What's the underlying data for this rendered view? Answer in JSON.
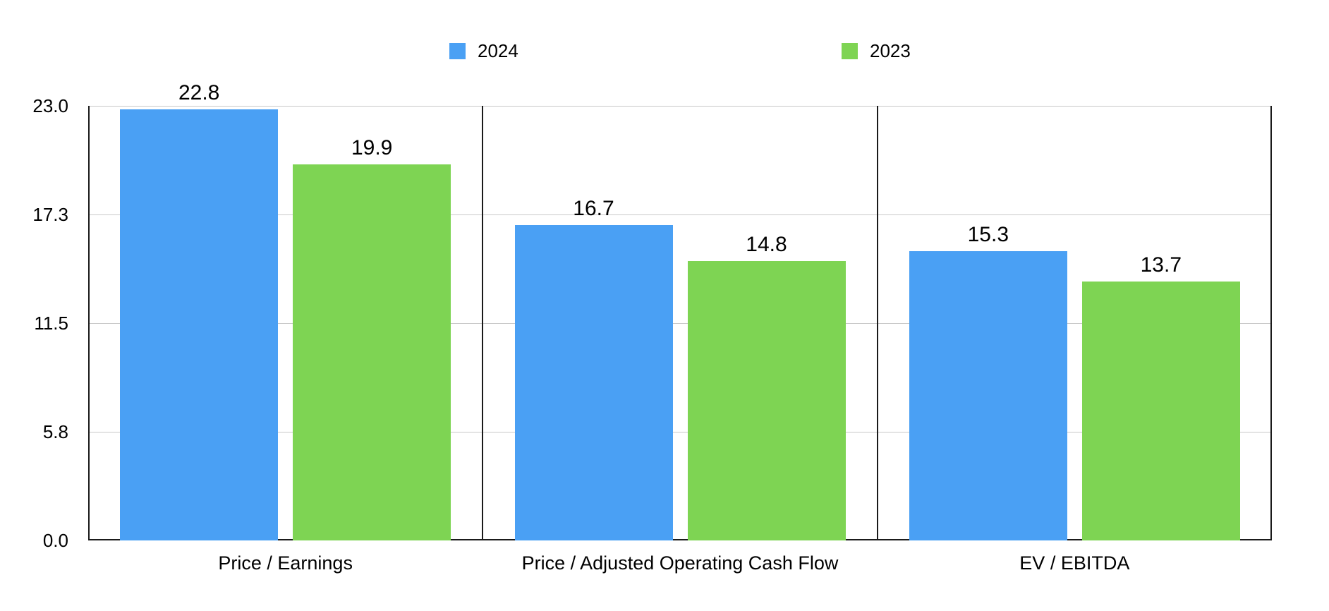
{
  "chart_data": {
    "type": "bar",
    "title": "",
    "categories": [
      "Price / Earnings",
      "Price / Adjusted Operating Cash Flow",
      "EV / EBITDA"
    ],
    "series": [
      {
        "name": "2024",
        "color": "#4AA0F4",
        "values": [
          22.8,
          16.7,
          15.3
        ]
      },
      {
        "name": "2023",
        "color": "#7ED453",
        "values": [
          19.9,
          14.8,
          13.7
        ]
      }
    ],
    "y_ticks": [
      "0.0",
      "5.8",
      "11.5",
      "17.3",
      "23.0"
    ],
    "ylim": [
      0,
      23
    ],
    "grid": true,
    "legend_position": "top",
    "value_labels_shown": true,
    "colors": {
      "grid": "#c9c9c9",
      "axis": "#1a1a1a",
      "text": "#000000",
      "background": "#ffffff"
    }
  },
  "legend": {
    "items": [
      {
        "label": "2024",
        "color": "#4AA0F4"
      },
      {
        "label": "2023",
        "color": "#7ED453"
      }
    ]
  }
}
